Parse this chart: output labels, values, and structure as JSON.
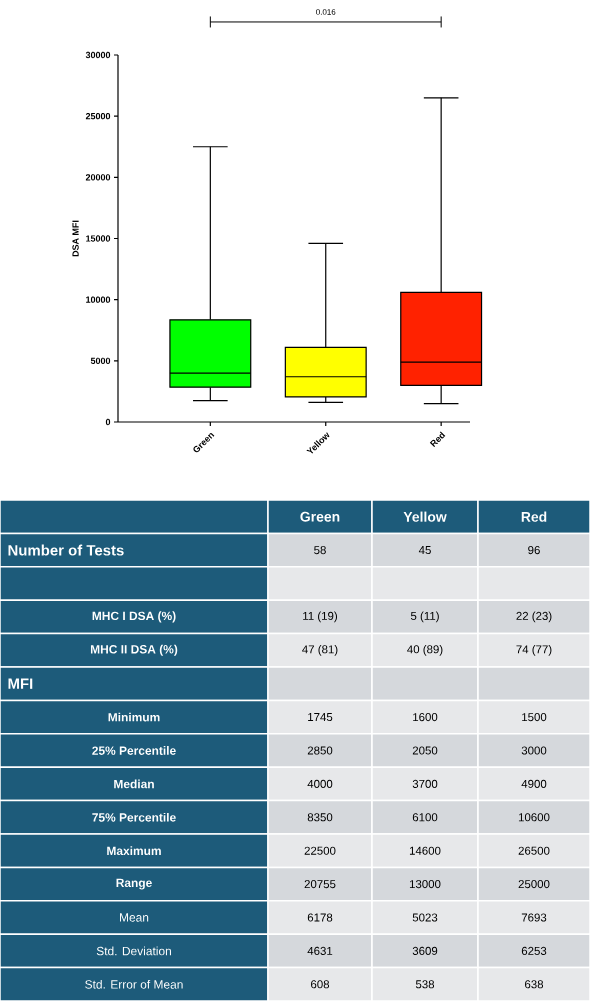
{
  "chart_data": {
    "type": "box",
    "ylabel": "DSA MFI",
    "categories": [
      "Green",
      "Yellow",
      "Red"
    ],
    "colors": [
      "#00ff00",
      "#ffff00",
      "#ff2200"
    ],
    "boxes": [
      {
        "low": 1745,
        "q1": 2850,
        "median": 4000,
        "q3": 8350,
        "high": 22500
      },
      {
        "low": 1600,
        "q1": 2050,
        "median": 3700,
        "q3": 6100,
        "high": 14600
      },
      {
        "low": 1500,
        "q1": 3000,
        "median": 4900,
        "q3": 10600,
        "high": 26500
      }
    ],
    "ylim": [
      0,
      30000
    ],
    "yticks": [
      0,
      5000,
      10000,
      15000,
      20000,
      25000,
      30000
    ],
    "annotations": [
      "0.016",
      "Number of Tests",
      "58",
      "45",
      "96",
      "MHC I DSA (%)",
      "11 (19)",
      "5 (11)",
      "22 (23)",
      "MHC II DSA (%)",
      "47 (81)",
      "40 (89)",
      "74 (77)",
      "MFI",
      "Minimum",
      "1745",
      "1600",
      "1500",
      "25% Percentile",
      "2850",
      "2050",
      "3000",
      "Median",
      "4000",
      "3700",
      "4900",
      "75% Percentile",
      "8350",
      "6100",
      "10600",
      "Maximum",
      "22500",
      "14600",
      "26500",
      "Range",
      "20755",
      "13000",
      "25000",
      "Mean",
      "6178",
      "5023",
      "7693",
      "Std. Deviation",
      "4631",
      "3609",
      "6253",
      "Std. Error of Mean",
      "608",
      "538",
      "638"
    ]
  }
}
